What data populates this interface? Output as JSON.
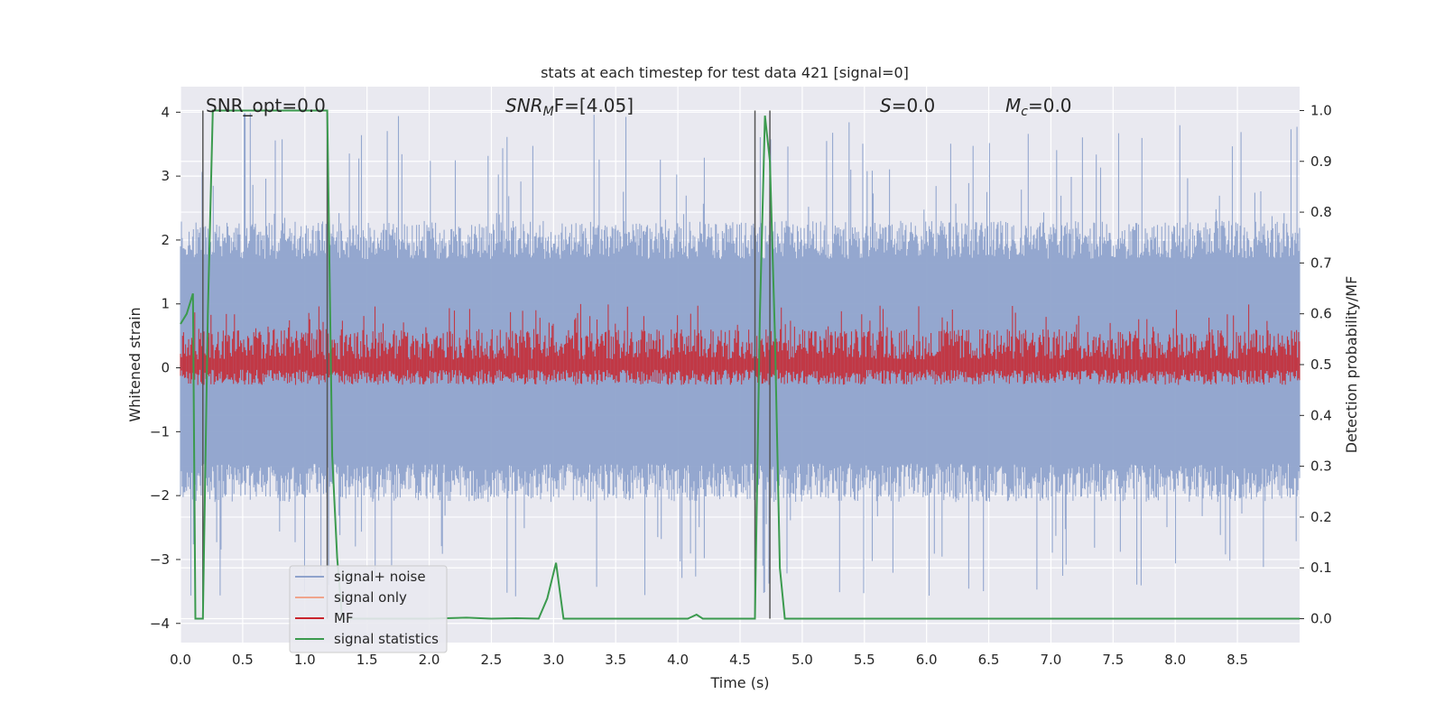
{
  "chart_data": {
    "type": "line",
    "title": "stats at each timestep for test data 421 [signal=0]",
    "xlabel": "Time (s)",
    "ylabel": "Whitened strain",
    "y2label": "Detection probability/MF",
    "xlim": [
      0,
      9.0
    ],
    "ylim": [
      -4.3,
      4.4
    ],
    "y2lim": [
      -0.047,
      1.047
    ],
    "xticks": [
      "0.0",
      "0.5",
      "1.0",
      "1.5",
      "2.0",
      "2.5",
      "3.0",
      "3.5",
      "4.0",
      "4.5",
      "5.0",
      "5.5",
      "6.0",
      "6.5",
      "7.0",
      "7.5",
      "8.0",
      "8.5"
    ],
    "yticks": [
      "4",
      "3",
      "2",
      "1",
      "0",
      "−1",
      "−2",
      "−3",
      "−4"
    ],
    "y2ticks": [
      "1.0",
      "0.9",
      "0.8",
      "0.7",
      "0.6",
      "0.5",
      "0.4",
      "0.3",
      "0.2",
      "0.1",
      "0.0"
    ],
    "grid": true,
    "legend_position": "lower-left",
    "annotations": {
      "snr_opt": "SNR_opt=0.0",
      "snr_mf_base": "SNR",
      "snr_mf_sub": "M",
      "snr_mf_rest": "F=[4.05]",
      "s_base": "S",
      "s_rest": "=0.0",
      "mc_base": "M",
      "mc_sub": "c",
      "mc_rest": "=0.0"
    },
    "vertical_lines_x": [
      0.18,
      1.18,
      4.62,
      4.74
    ],
    "series": [
      {
        "name": "signal+ noise",
        "color": "#8fa3cc",
        "envelope": {
          "x_range": [
            0,
            9.0
          ],
          "typical_low": -1.5,
          "typical_high": 1.7,
          "peak_low": -3.6,
          "peak_high": 4.0
        }
      },
      {
        "name": "signal only",
        "color": "#f0a48c",
        "values": [
          0
        ]
      },
      {
        "name": "MF",
        "color": "#c9242d",
        "axis": "right",
        "envelope": {
          "x_range": [
            0,
            9.0
          ],
          "baseline": 0.5,
          "typical_high": 0.56,
          "peak_high": 0.62
        }
      },
      {
        "name": "signal statistics",
        "color": "#3b9a4e",
        "axis": "right",
        "x": [
          0.0,
          0.05,
          0.1,
          0.12,
          0.18,
          0.22,
          0.26,
          1.18,
          1.22,
          1.26,
          1.3,
          1.5,
          2.0,
          2.3,
          2.5,
          2.7,
          2.88,
          2.95,
          3.02,
          3.08,
          3.5,
          4.0,
          4.08,
          4.15,
          4.2,
          4.5,
          4.62,
          4.66,
          4.7,
          4.74,
          4.78,
          4.82,
          4.86,
          5.0,
          9.0
        ],
        "values": [
          0.58,
          0.6,
          0.64,
          0.0,
          0.0,
          0.6,
          1.0,
          1.0,
          0.32,
          0.12,
          0.0,
          0.0,
          0.0,
          0.002,
          0.0,
          0.001,
          0.0,
          0.04,
          0.11,
          0.0,
          0.0,
          0.0,
          0.0,
          0.008,
          0.0,
          0.0,
          0.0,
          0.6,
          0.99,
          0.9,
          0.56,
          0.1,
          0.0,
          0.0,
          0.0
        ]
      }
    ]
  }
}
